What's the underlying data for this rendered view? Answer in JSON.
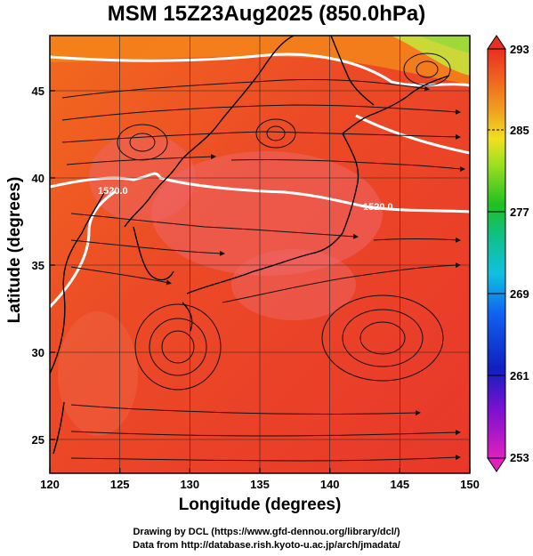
{
  "title": "MSM 15Z23Aug2025 (850.0hPa)",
  "xlabel": "Longitude (degrees)",
  "ylabel": "Latitude  (degrees)",
  "x_ticks": [
    "120",
    "125",
    "130",
    "135",
    "140",
    "145",
    "150"
  ],
  "y_ticks": [
    "25",
    "30",
    "35",
    "40",
    "45"
  ],
  "colorbar_ticks": [
    "293",
    "285",
    "277",
    "269",
    "261",
    "253"
  ],
  "contour_labels": [
    "1520.0",
    "1520.0"
  ],
  "credits": {
    "line1": "Drawing by DCL (https://www.gfd-dennou.org/library/dcl/)",
    "line2": "Data from http://database.rish.kyoto-u.ac.jp/arch/jmadata/"
  },
  "map": {
    "lon_range": [
      120,
      150
    ],
    "lat_range": [
      22.5,
      47.6
    ],
    "field": "temperature",
    "colors": {
      "warm_red": "#e8372a",
      "orange": "#f26a1e",
      "pale_red": "#ee6666",
      "yellow_green": "#c8e23c",
      "contour": "#ffffff",
      "streamline": "#111111"
    }
  }
}
